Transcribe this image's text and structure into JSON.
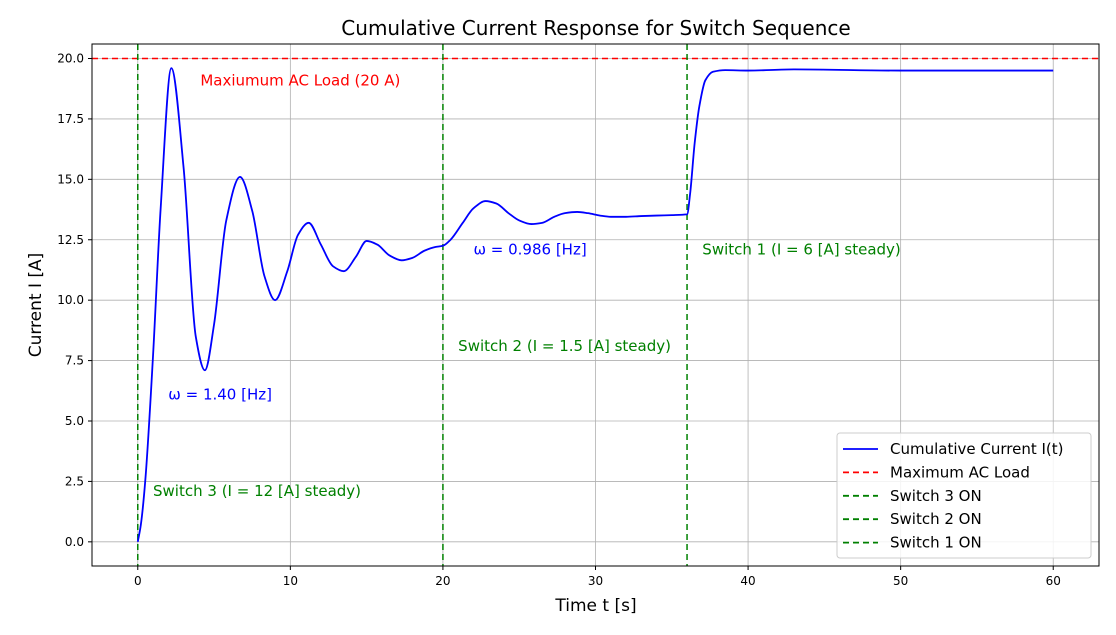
{
  "chart_data": {
    "type": "line",
    "title": "Cumulative Current Response for Switch Sequence",
    "xlabel": "Time t [s]",
    "ylabel": "Current I [A]",
    "xlim": [
      -3,
      63
    ],
    "ylim": [
      -1,
      20.6
    ],
    "xticks": [
      0,
      10,
      20,
      30,
      40,
      50,
      60
    ],
    "xtick_labels": [
      "0",
      "10",
      "20",
      "30",
      "40",
      "50",
      "60"
    ],
    "yticks": [
      0,
      2.5,
      5,
      7.5,
      10,
      12.5,
      15,
      17.5,
      20
    ],
    "ytick_labels": [
      "0.0",
      "2.5",
      "5.0",
      "7.5",
      "10.0",
      "12.5",
      "15.0",
      "17.5",
      "20.0"
    ],
    "grid": true,
    "series": [
      {
        "name": "Cumulative Current I(t)",
        "color": "#0000ff",
        "x": [
          0,
          0.2,
          0.5,
          1,
          1.5,
          2.2,
          3,
          3.8,
          4.4,
          5,
          5.8,
          6.7,
          7.5,
          8.3,
          9,
          9.8,
          10.5,
          11.2,
          12,
          12.8,
          13.5,
          14.3,
          15,
          15.7,
          16.5,
          17.3,
          18,
          18.8,
          19.5,
          20,
          20.5,
          21.3,
          22,
          22.8,
          23.5,
          24.3,
          25,
          25.8,
          26.5,
          27.3,
          28,
          28.8,
          29.5,
          30.3,
          31,
          32,
          33,
          34,
          35,
          36,
          36.2,
          36.5,
          36.8,
          37.2,
          37.7,
          38.5,
          40,
          43,
          50,
          60
        ],
        "y": [
          0,
          0.7,
          2.6,
          7.7,
          13.8,
          19.6,
          15.5,
          8.5,
          7.1,
          9.0,
          13.3,
          15.1,
          13.7,
          11.0,
          10.0,
          11.2,
          12.7,
          13.2,
          12.3,
          11.4,
          11.2,
          11.8,
          12.45,
          12.3,
          11.85,
          11.65,
          11.75,
          12.05,
          12.2,
          12.25,
          12.5,
          13.2,
          13.8,
          14.1,
          14.0,
          13.6,
          13.3,
          13.15,
          13.2,
          13.45,
          13.6,
          13.65,
          13.6,
          13.5,
          13.45,
          13.45,
          13.48,
          13.5,
          13.52,
          13.55,
          14.4,
          16.5,
          18.0,
          19.1,
          19.45,
          19.52,
          19.5,
          19.55,
          19.5,
          19.5
        ]
      }
    ],
    "hlines": [
      {
        "name": "Maximum AC Load",
        "y": 20,
        "color": "#ff0000",
        "style": "dashed"
      }
    ],
    "vlines": [
      {
        "name": "Switch 3 ON",
        "x": 0,
        "color": "#008000",
        "style": "dashed"
      },
      {
        "name": "Switch 2 ON",
        "x": 20,
        "color": "#008000",
        "style": "dashed"
      },
      {
        "name": "Switch 1 ON",
        "x": 36,
        "color": "#008000",
        "style": "dashed"
      }
    ],
    "annotations": [
      {
        "text": "Maxiumum AC Load (20 A)",
        "x": 4.1,
        "y": 19.1,
        "color": "#ff0000"
      },
      {
        "text": "ω = 1.40 [Hz]",
        "x": 2,
        "y": 6.1,
        "color": "#0000ff"
      },
      {
        "text": "ω = 0.986 [Hz]",
        "x": 22,
        "y": 12.1,
        "color": "#0000ff"
      },
      {
        "text": "Switch 3 (I = 12 [A] steady)",
        "x": 1,
        "y": 2.1,
        "color": "#008000"
      },
      {
        "text": "Switch 2 (I = 1.5 [A] steady)",
        "x": 21,
        "y": 8.1,
        "color": "#008000"
      },
      {
        "text": "Switch 1 (I = 6 [A] steady)",
        "x": 37,
        "y": 12.1,
        "color": "#008000"
      }
    ],
    "legend": {
      "placement": "lower-right",
      "entries": [
        {
          "label": "Cumulative Current I(t)",
          "color": "#0000ff",
          "style": "solid"
        },
        {
          "label": "Maximum AC Load",
          "color": "#ff0000",
          "style": "dashed"
        },
        {
          "label": "Switch 3 ON",
          "color": "#008000",
          "style": "dashed"
        },
        {
          "label": "Switch 2 ON",
          "color": "#008000",
          "style": "dashed"
        },
        {
          "label": "Switch 1 ON",
          "color": "#008000",
          "style": "dashed"
        }
      ]
    }
  }
}
